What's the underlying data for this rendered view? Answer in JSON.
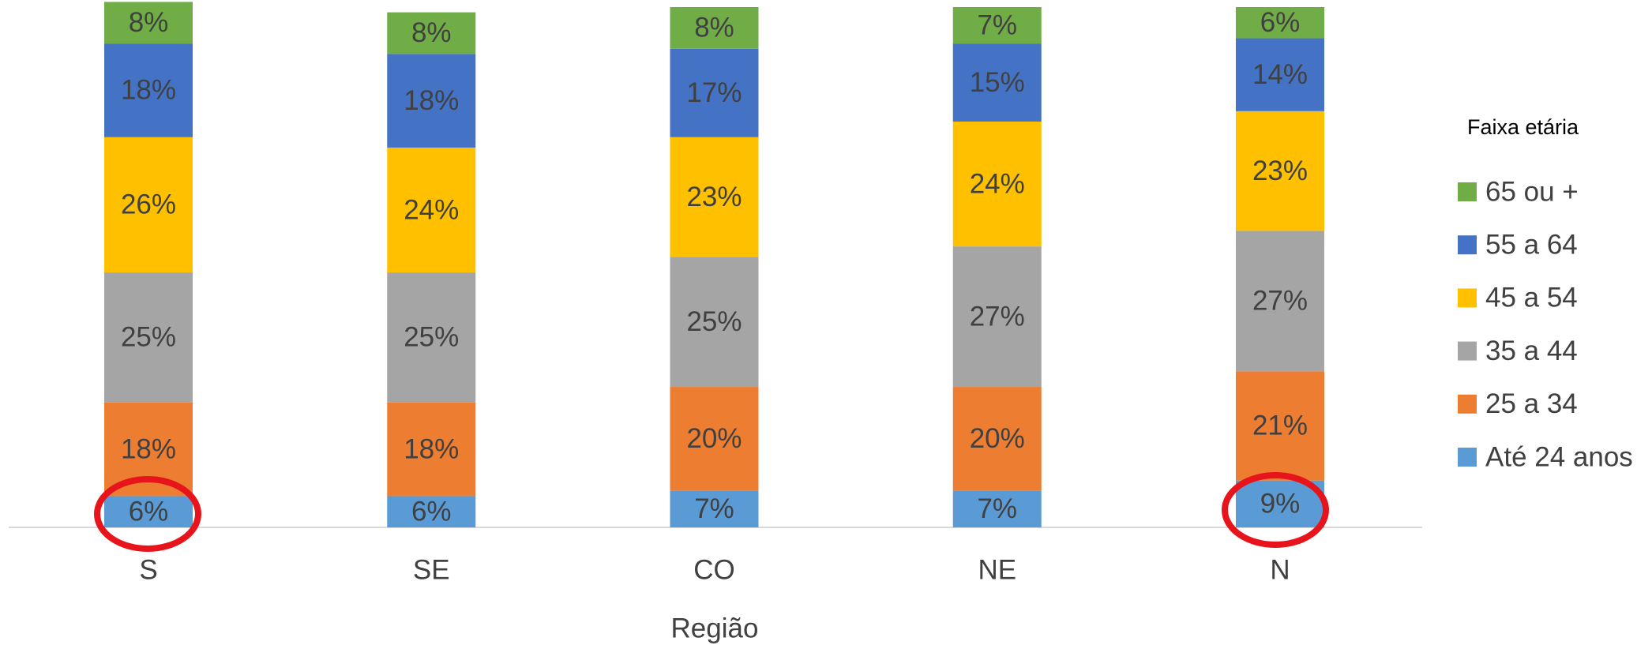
{
  "chart_data": {
    "type": "stacked_bar",
    "categories": [
      "S",
      "SE",
      "CO",
      "NE",
      "N"
    ],
    "x_label": "Região",
    "legend_title": "Faixa etária",
    "ylim": [
      0,
      100
    ],
    "series": [
      {
        "name": "Até 24 anos",
        "color": "#5b9bd5",
        "values": [
          6,
          6,
          7,
          7,
          9
        ],
        "value_labels": [
          "6%",
          "6%",
          "7%",
          "7%",
          "9%"
        ]
      },
      {
        "name": "25 a 34",
        "color": "#ed7d31",
        "values": [
          18,
          18,
          20,
          20,
          21
        ],
        "value_labels": [
          "18%",
          "18%",
          "20%",
          "20%",
          "21%"
        ]
      },
      {
        "name": "35 a 44",
        "color": "#a5a5a5",
        "values": [
          25,
          25,
          25,
          27,
          27
        ],
        "value_labels": [
          "25%",
          "25%",
          "25%",
          "27%",
          "27%"
        ]
      },
      {
        "name": "45 a 54",
        "color": "#ffc000",
        "values": [
          26,
          24,
          23,
          24,
          23
        ],
        "value_labels": [
          "26%",
          "24%",
          "23%",
          "24%",
          "23%"
        ]
      },
      {
        "name": "55 a 64",
        "color": "#4472c4",
        "values": [
          18,
          18,
          17,
          15,
          14
        ],
        "value_labels": [
          "18%",
          "18%",
          "17%",
          "15%",
          "14%"
        ]
      },
      {
        "name": "65 ou +",
        "color": "#70ad47",
        "values": [
          8,
          8,
          8,
          7,
          6
        ],
        "value_labels": [
          "8%",
          "8%",
          "8%",
          "7%",
          "6%"
        ]
      }
    ]
  }
}
